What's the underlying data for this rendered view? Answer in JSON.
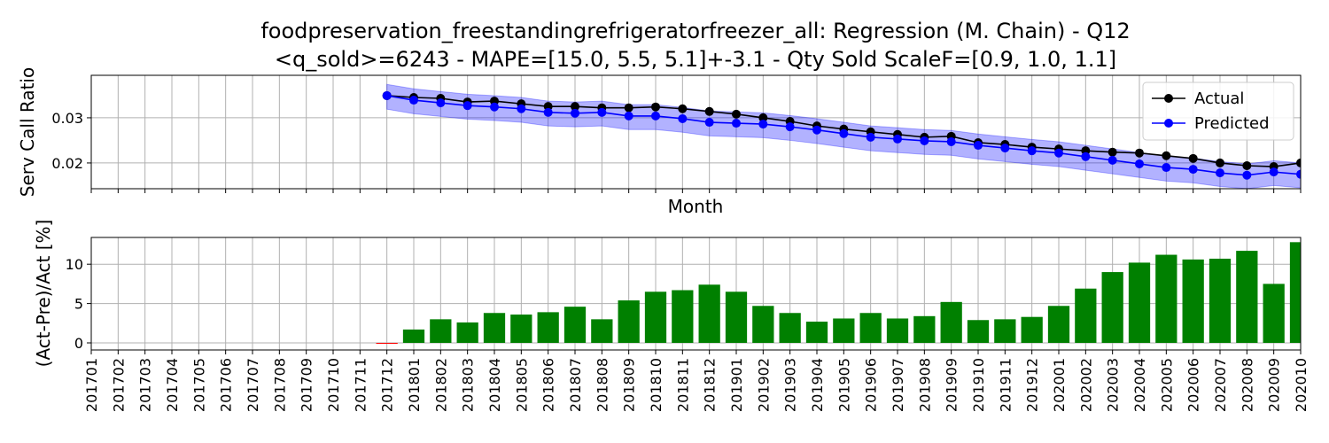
{
  "chart_data": [
    {
      "type": "line",
      "title": "foodpreservation_freestandingrefrigeratorfreezer_all: Regression (M. Chain) - Q12",
      "subtitle": "<q_sold>=6243 - MAPE=[15.0, 5.5, 5.1]+-3.1 - Qty Sold ScaleF=[0.9, 1.0, 1.1]",
      "ylabel": "Serv Call Ratio",
      "xlabel": "Month",
      "ylim": [
        0.0143,
        0.0394
      ],
      "yticks": [
        0.02,
        0.03
      ],
      "grid": true,
      "legend": "upper right",
      "series": [
        {
          "name": "Actual",
          "color": "#000000",
          "values": [
            null,
            null,
            null,
            null,
            null,
            null,
            null,
            null,
            null,
            null,
            null,
            0.0349,
            0.0345,
            0.0343,
            0.0335,
            0.0337,
            0.0331,
            0.0325,
            0.0325,
            0.0322,
            0.0322,
            0.0324,
            0.032,
            0.0314,
            0.0308,
            0.03,
            0.0292,
            0.0282,
            0.0275,
            0.0269,
            0.0263,
            0.0257,
            0.0259,
            0.0245,
            0.0241,
            0.0235,
            0.0231,
            0.0227,
            0.0224,
            0.0222,
            0.0216,
            0.021,
            0.02,
            0.0194,
            0.0192,
            0.02
          ]
        },
        {
          "name": "Predicted",
          "color": "#0000ff",
          "values": [
            null,
            null,
            null,
            null,
            null,
            null,
            null,
            null,
            null,
            null,
            null,
            0.0349,
            0.0339,
            0.0333,
            0.0327,
            0.0324,
            0.032,
            0.0312,
            0.031,
            0.0312,
            0.0304,
            0.0304,
            0.0298,
            0.029,
            0.0288,
            0.0286,
            0.028,
            0.0273,
            0.0265,
            0.0257,
            0.0253,
            0.0249,
            0.0247,
            0.0239,
            0.0233,
            0.0227,
            0.0222,
            0.0214,
            0.0206,
            0.0198,
            0.019,
            0.0186,
            0.0178,
            0.0173,
            0.018,
            0.0175
          ]
        }
      ],
      "band": {
        "color": "#0000ff",
        "upper": [
          null,
          null,
          null,
          null,
          null,
          null,
          null,
          null,
          null,
          null,
          null,
          0.0374,
          0.0364,
          0.0358,
          0.0352,
          0.0349,
          0.0345,
          0.0337,
          0.0335,
          0.0337,
          0.0329,
          0.0329,
          0.0323,
          0.0315,
          0.0313,
          0.0311,
          0.0305,
          0.0298,
          0.029,
          0.0282,
          0.0278,
          0.0274,
          0.0272,
          0.0264,
          0.0258,
          0.0252,
          0.0247,
          0.0239,
          0.0231,
          0.0223,
          0.0215,
          0.0211,
          0.0203,
          0.0198,
          0.0205,
          0.02
        ],
        "lower": [
          null,
          null,
          null,
          null,
          null,
          null,
          null,
          null,
          null,
          null,
          null,
          0.0319,
          0.0309,
          0.0303,
          0.0297,
          0.0294,
          0.029,
          0.0282,
          0.028,
          0.0282,
          0.0274,
          0.0274,
          0.0268,
          0.026,
          0.0258,
          0.0256,
          0.025,
          0.0243,
          0.0235,
          0.0227,
          0.0223,
          0.0219,
          0.0217,
          0.0209,
          0.0203,
          0.0197,
          0.0192,
          0.0184,
          0.0176,
          0.0168,
          0.016,
          0.0156,
          0.0148,
          0.0143,
          0.015,
          0.0145
        ]
      }
    },
    {
      "type": "bar",
      "ylabel": "(Act-Pre)/Act [%]",
      "categories": [
        "201701",
        "201702",
        "201703",
        "201704",
        "201705",
        "201706",
        "201707",
        "201708",
        "201709",
        "201710",
        "201711",
        "201712",
        "201801",
        "201802",
        "201803",
        "201804",
        "201805",
        "201806",
        "201807",
        "201808",
        "201809",
        "201810",
        "201811",
        "201812",
        "201901",
        "201902",
        "201903",
        "201904",
        "201905",
        "201906",
        "201907",
        "201908",
        "201909",
        "201910",
        "201911",
        "201912",
        "202001",
        "202002",
        "202003",
        "202004",
        "202005",
        "202006",
        "202007",
        "202008",
        "202009",
        "202010"
      ],
      "values": [
        null,
        null,
        null,
        null,
        null,
        null,
        null,
        null,
        null,
        null,
        null,
        -0.1,
        1.7,
        3.0,
        2.6,
        3.8,
        3.6,
        3.9,
        4.6,
        3.0,
        5.4,
        6.5,
        6.7,
        7.4,
        6.5,
        4.7,
        3.8,
        2.7,
        3.1,
        3.8,
        3.1,
        3.4,
        5.2,
        2.9,
        3.0,
        3.3,
        4.7,
        6.9,
        9.0,
        10.2,
        11.2,
        10.6,
        10.7,
        11.7,
        7.5,
        12.8
      ],
      "color": "#008000",
      "negative_color": "#ff0000",
      "ylim": [
        -0.9,
        13.4
      ],
      "yticks": [
        0,
        5,
        10
      ],
      "grid": true
    }
  ]
}
